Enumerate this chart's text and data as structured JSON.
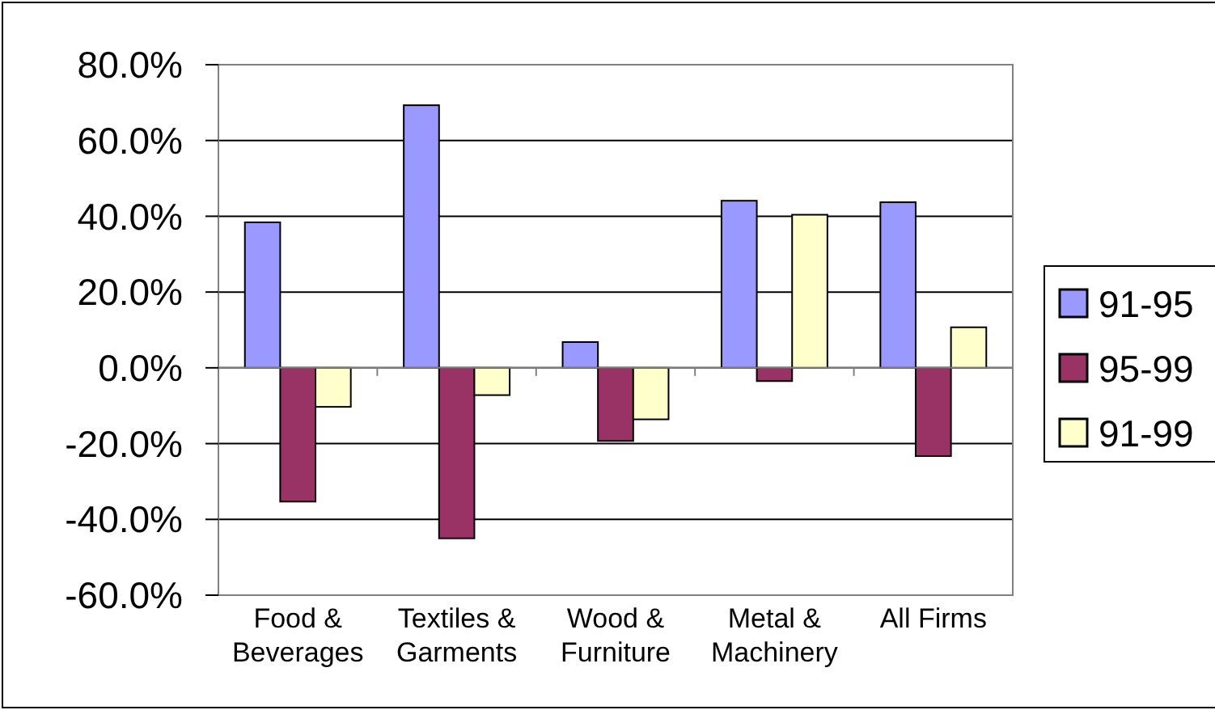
{
  "chart_data": {
    "type": "bar",
    "categories": [
      "Food & Beverages",
      "Textiles & Garments",
      "Wood & Furniture",
      "Metal & Machinery",
      "All Firms"
    ],
    "series": [
      {
        "name": "91-95",
        "color": "#9999ff",
        "values": [
          38.4,
          69.3,
          6.8,
          44.1,
          43.7
        ]
      },
      {
        "name": "95-99",
        "color": "#993366",
        "values": [
          -35.3,
          -45.0,
          -19.3,
          -3.5,
          -23.3
        ]
      },
      {
        "name": "91-99",
        "color": "#ffffcc",
        "values": [
          -10.3,
          -7.2,
          -13.6,
          40.4,
          10.7
        ]
      }
    ],
    "ylim": [
      -60,
      80
    ],
    "yticks": [
      {
        "value": -60,
        "label": "-60.0%"
      },
      {
        "value": -40,
        "label": "-40.0%"
      },
      {
        "value": -20,
        "label": "-20.0%"
      },
      {
        "value": 0,
        "label": "0.0%"
      },
      {
        "value": 20,
        "label": "20.0%"
      },
      {
        "value": 40,
        "label": "40.0%"
      },
      {
        "value": 60,
        "label": "60.0%"
      },
      {
        "value": 80,
        "label": "80.0%"
      }
    ],
    "grid": "y",
    "legend": "right"
  }
}
